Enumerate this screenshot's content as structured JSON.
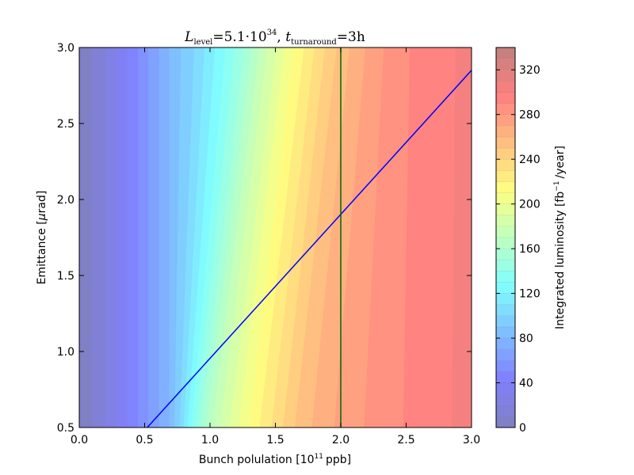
{
  "chart_data": {
    "type": "heatmap",
    "subtype": "filled-contour",
    "title": {
      "main_symbol": "L",
      "main_subscript": "level",
      "main_value": "=5.1·10",
      "main_exponent": "34",
      "separator": ", ",
      "second_symbol": "t",
      "second_subscript": "turnaround",
      "second_value": "=3h"
    },
    "xlabel": {
      "prefix": "Bunch polulation [10",
      "exponent": "11",
      "suffix": "ppb]"
    },
    "ylabel": {
      "prefix": "Emittance [",
      "mu": "μ",
      "suffix": "rad]"
    },
    "colorbar_label": {
      "prefix": "Integrated luminosity [fb",
      "exponent": "−1",
      "suffix": "/year]"
    },
    "xlim": [
      0.0,
      3.0
    ],
    "ylim": [
      0.5,
      3.0
    ],
    "xticks": [
      "0.0",
      "0.5",
      "1.0",
      "1.5",
      "2.0",
      "2.5",
      "3.0"
    ],
    "yticks": [
      "0.5",
      "1.0",
      "1.5",
      "2.0",
      "2.5",
      "3.0"
    ],
    "colorbar": {
      "range": [
        0,
        340
      ],
      "ticks": [
        "0",
        "40",
        "80",
        "120",
        "160",
        "200",
        "240",
        "280",
        "320"
      ],
      "level_step": 10
    },
    "contour_boundaries": [
      {
        "level": 10,
        "x_bottom": 0.1,
        "x_top": 0.1
      },
      {
        "level": 20,
        "x_bottom": 0.2,
        "x_top": 0.2
      },
      {
        "level": 30,
        "x_bottom": 0.29,
        "x_top": 0.29
      },
      {
        "level": 40,
        "x_bottom": 0.37,
        "x_top": 0.37
      },
      {
        "level": 50,
        "x_bottom": 0.45,
        "x_top": 0.45
      },
      {
        "level": 60,
        "x_bottom": 0.53,
        "x_top": 0.53
      },
      {
        "level": 70,
        "x_bottom": 0.61,
        "x_top": 0.61
      },
      {
        "level": 80,
        "x_bottom": 0.69,
        "x_top": 0.69
      },
      {
        "level": 90,
        "x_bottom": 0.73,
        "x_top": 0.78
      },
      {
        "level": 100,
        "x_bottom": 0.77,
        "x_top": 0.88
      },
      {
        "level": 110,
        "x_bottom": 0.8,
        "x_top": 0.96
      },
      {
        "level": 120,
        "x_bottom": 0.83,
        "x_top": 1.04
      },
      {
        "level": 130,
        "x_bottom": 0.86,
        "x_top": 1.12
      },
      {
        "level": 140,
        "x_bottom": 0.89,
        "x_top": 1.19
      },
      {
        "level": 150,
        "x_bottom": 0.93,
        "x_top": 1.26
      },
      {
        "level": 160,
        "x_bottom": 0.97,
        "x_top": 1.32
      },
      {
        "level": 170,
        "x_bottom": 1.02,
        "x_top": 1.38
      },
      {
        "level": 180,
        "x_bottom": 1.08,
        "x_top": 1.44
      },
      {
        "level": 190,
        "x_bottom": 1.15,
        "x_top": 1.51
      },
      {
        "level": 200,
        "x_bottom": 1.22,
        "x_top": 1.57
      },
      {
        "level": 210,
        "x_bottom": 1.3,
        "x_top": 1.64
      },
      {
        "level": 220,
        "x_bottom": 1.38,
        "x_top": 1.72
      },
      {
        "level": 230,
        "x_bottom": 1.47,
        "x_top": 1.8
      },
      {
        "level": 240,
        "x_bottom": 1.56,
        "x_top": 1.88
      },
      {
        "level": 250,
        "x_bottom": 1.65,
        "x_top": 1.97
      },
      {
        "level": 260,
        "x_bottom": 1.78,
        "x_top": 2.07
      },
      {
        "level": 270,
        "x_bottom": 1.95,
        "x_top": 2.19
      },
      {
        "level": 280,
        "x_bottom": 2.18,
        "x_top": 2.33
      },
      {
        "level": 290,
        "x_bottom": 2.48,
        "x_top": 2.53
      },
      {
        "level": 300,
        "x_bottom": 2.85,
        "x_top": 2.88
      }
    ],
    "overlay_lines": [
      {
        "kind": "line",
        "color": "#0000ff",
        "points": [
          [
            0.52,
            0.5
          ],
          [
            3.0,
            2.85
          ]
        ]
      },
      {
        "kind": "vertical",
        "color": "#006400",
        "x": 2.0
      }
    ]
  }
}
